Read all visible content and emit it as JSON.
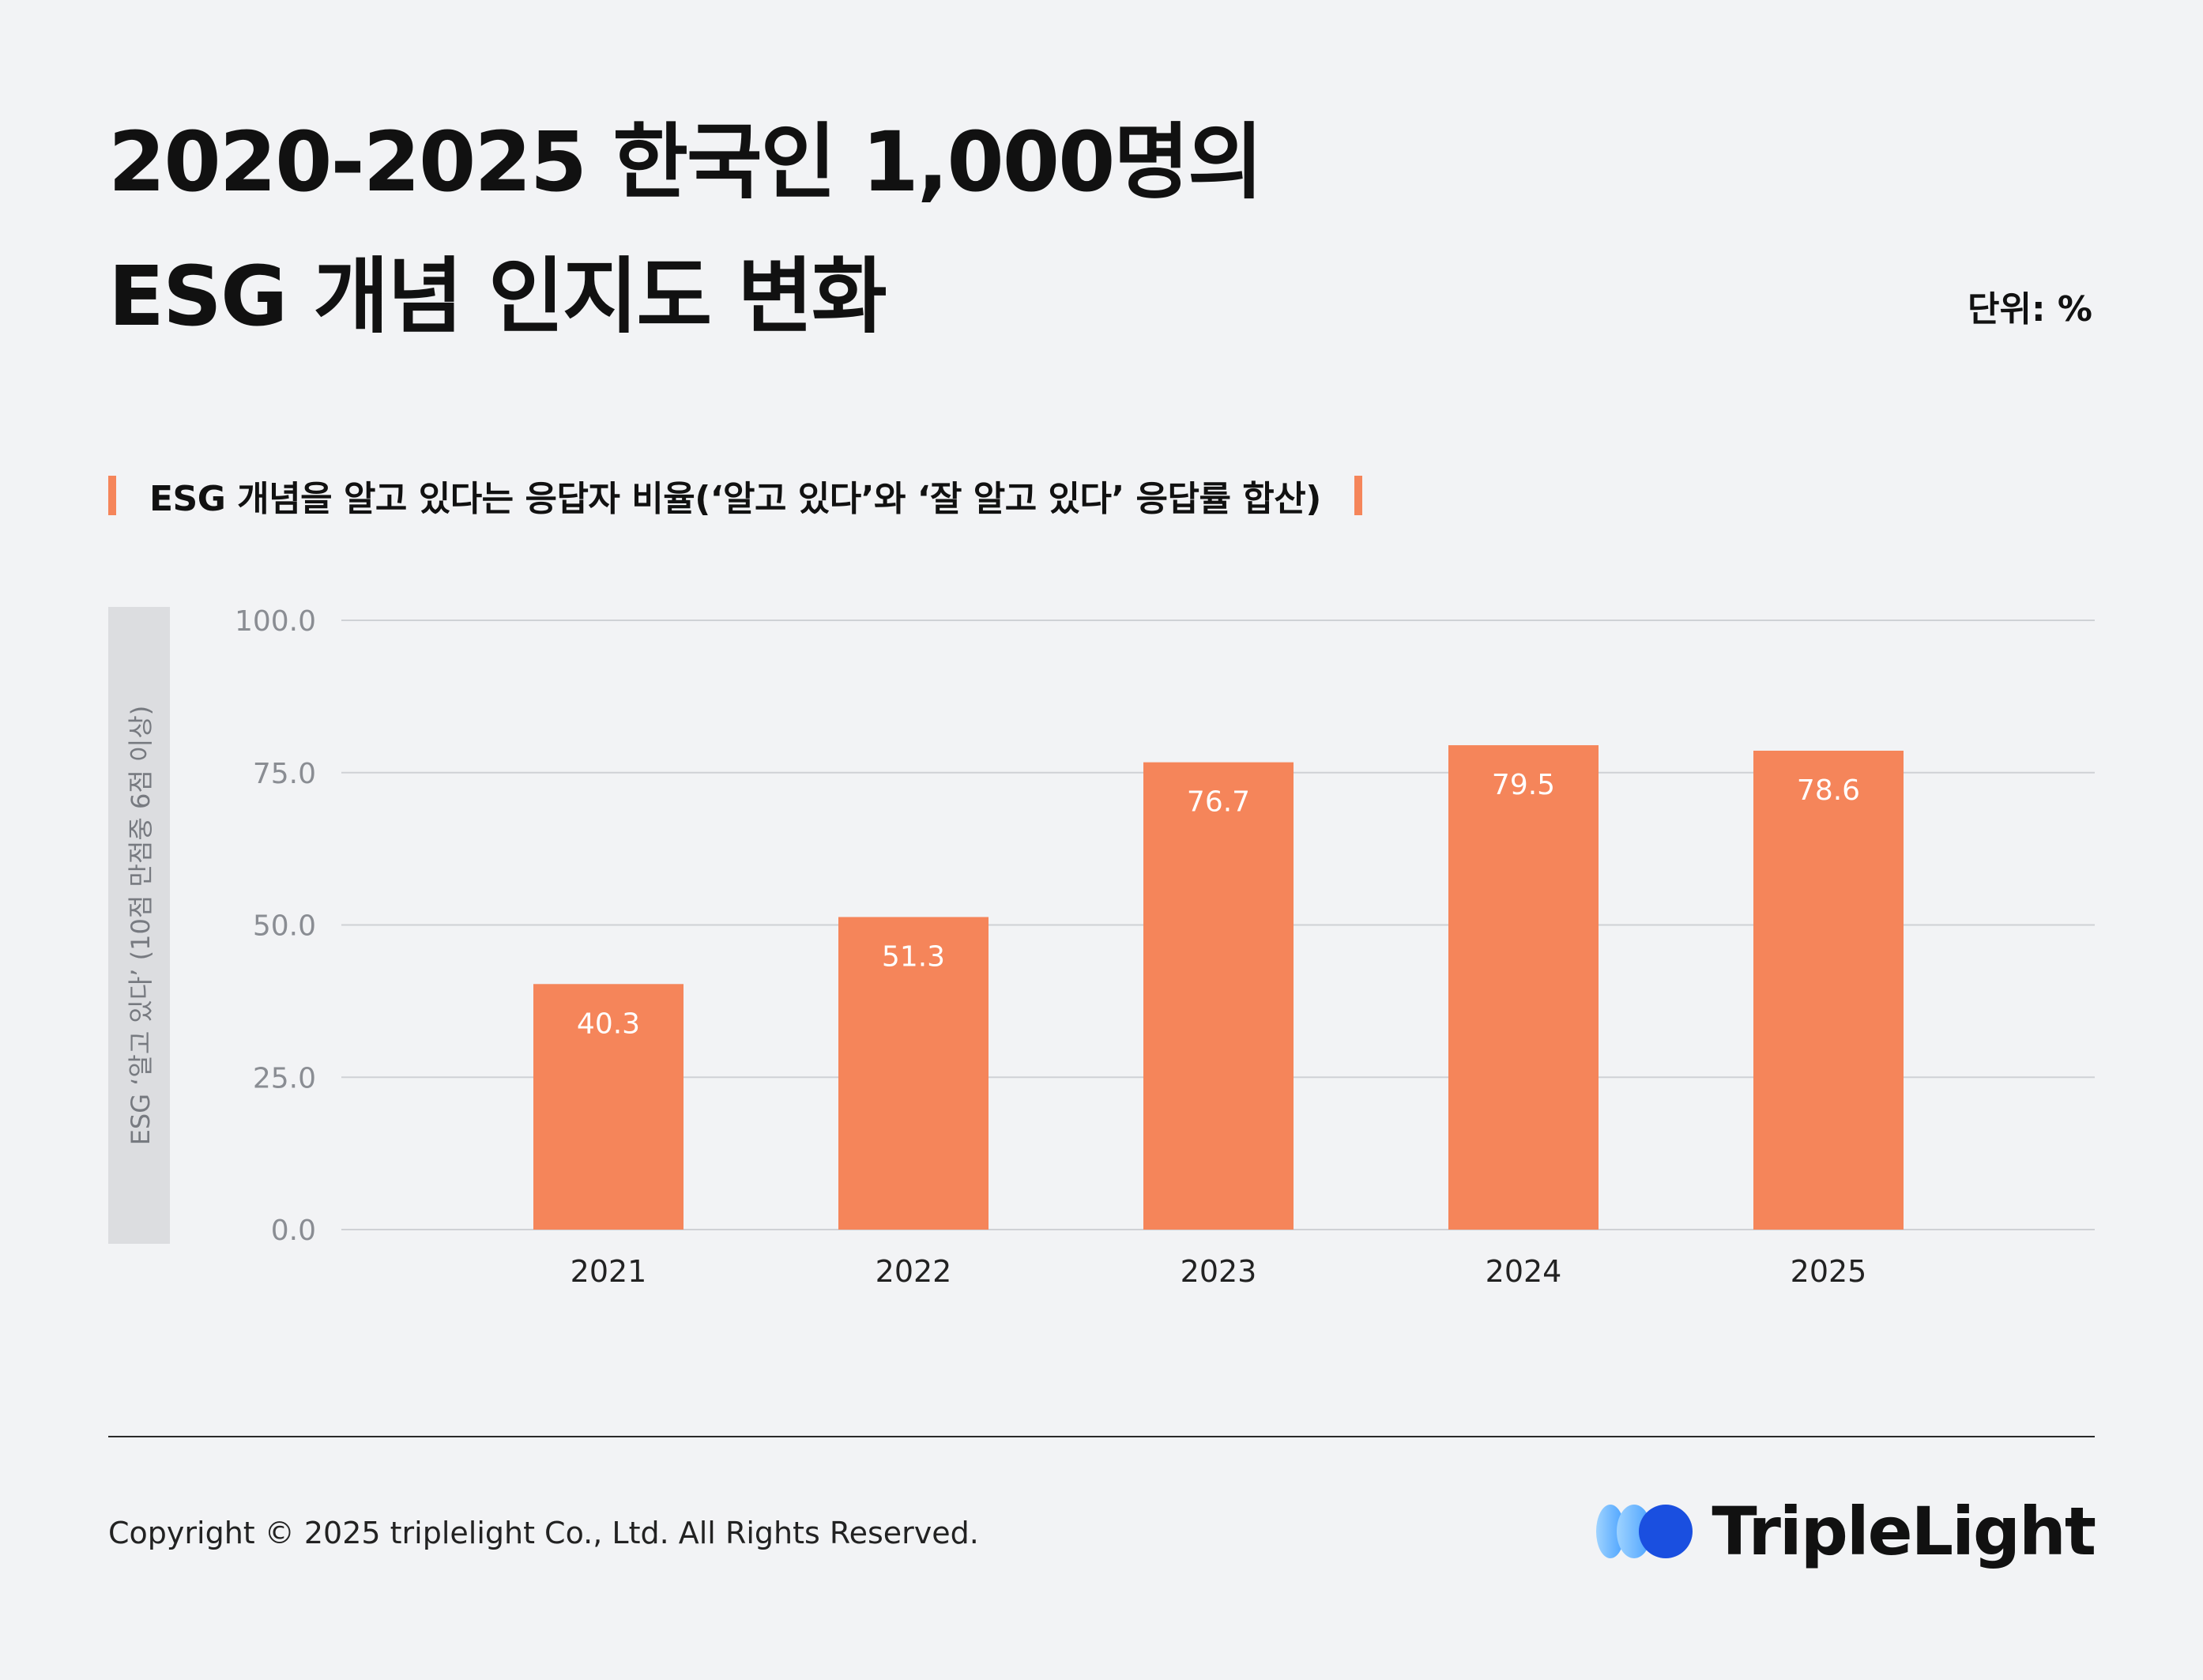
{
  "header": {
    "title_line1": "2020-2025 한국인 1,000명의",
    "title_line2": "ESG 개념 인지도 변화",
    "unit": "단위: %"
  },
  "subtitle": {
    "text": "ESG 개념을 알고 있다는 응답자 비율(‘알고 있다’와 ‘잘 알고 있다’ 응답률 합산)",
    "accent_color": "#f5855a"
  },
  "chart_data": {
    "type": "bar",
    "categories": [
      "2021",
      "2022",
      "2023",
      "2024",
      "2025"
    ],
    "values": [
      40.3,
      51.3,
      76.7,
      79.5,
      78.6
    ],
    "value_labels": [
      "40.3",
      "51.3",
      "76.7",
      "79.5",
      "78.6"
    ],
    "ylabel": "ESG ‘알고 있다’ (10점 만점중 6점 이상)",
    "ylim": [
      0,
      100
    ],
    "yticks": [
      "0.0",
      "25.0",
      "50.0",
      "75.0",
      "100.0"
    ],
    "grid": true,
    "bar_color": "#f5855a",
    "label_color": "#ffffff",
    "tick_color": "#8a8d93",
    "grid_color": "#cfd1d5"
  },
  "footer": {
    "copyright": "Copyright © 2025 triplelight Co., Ltd. All Rights Reserved.",
    "brand": "TripleLight"
  },
  "brand_colors": {
    "light": "#9fd3ff",
    "mid": "#4aa2ff",
    "dark": "#1a4fe0"
  }
}
